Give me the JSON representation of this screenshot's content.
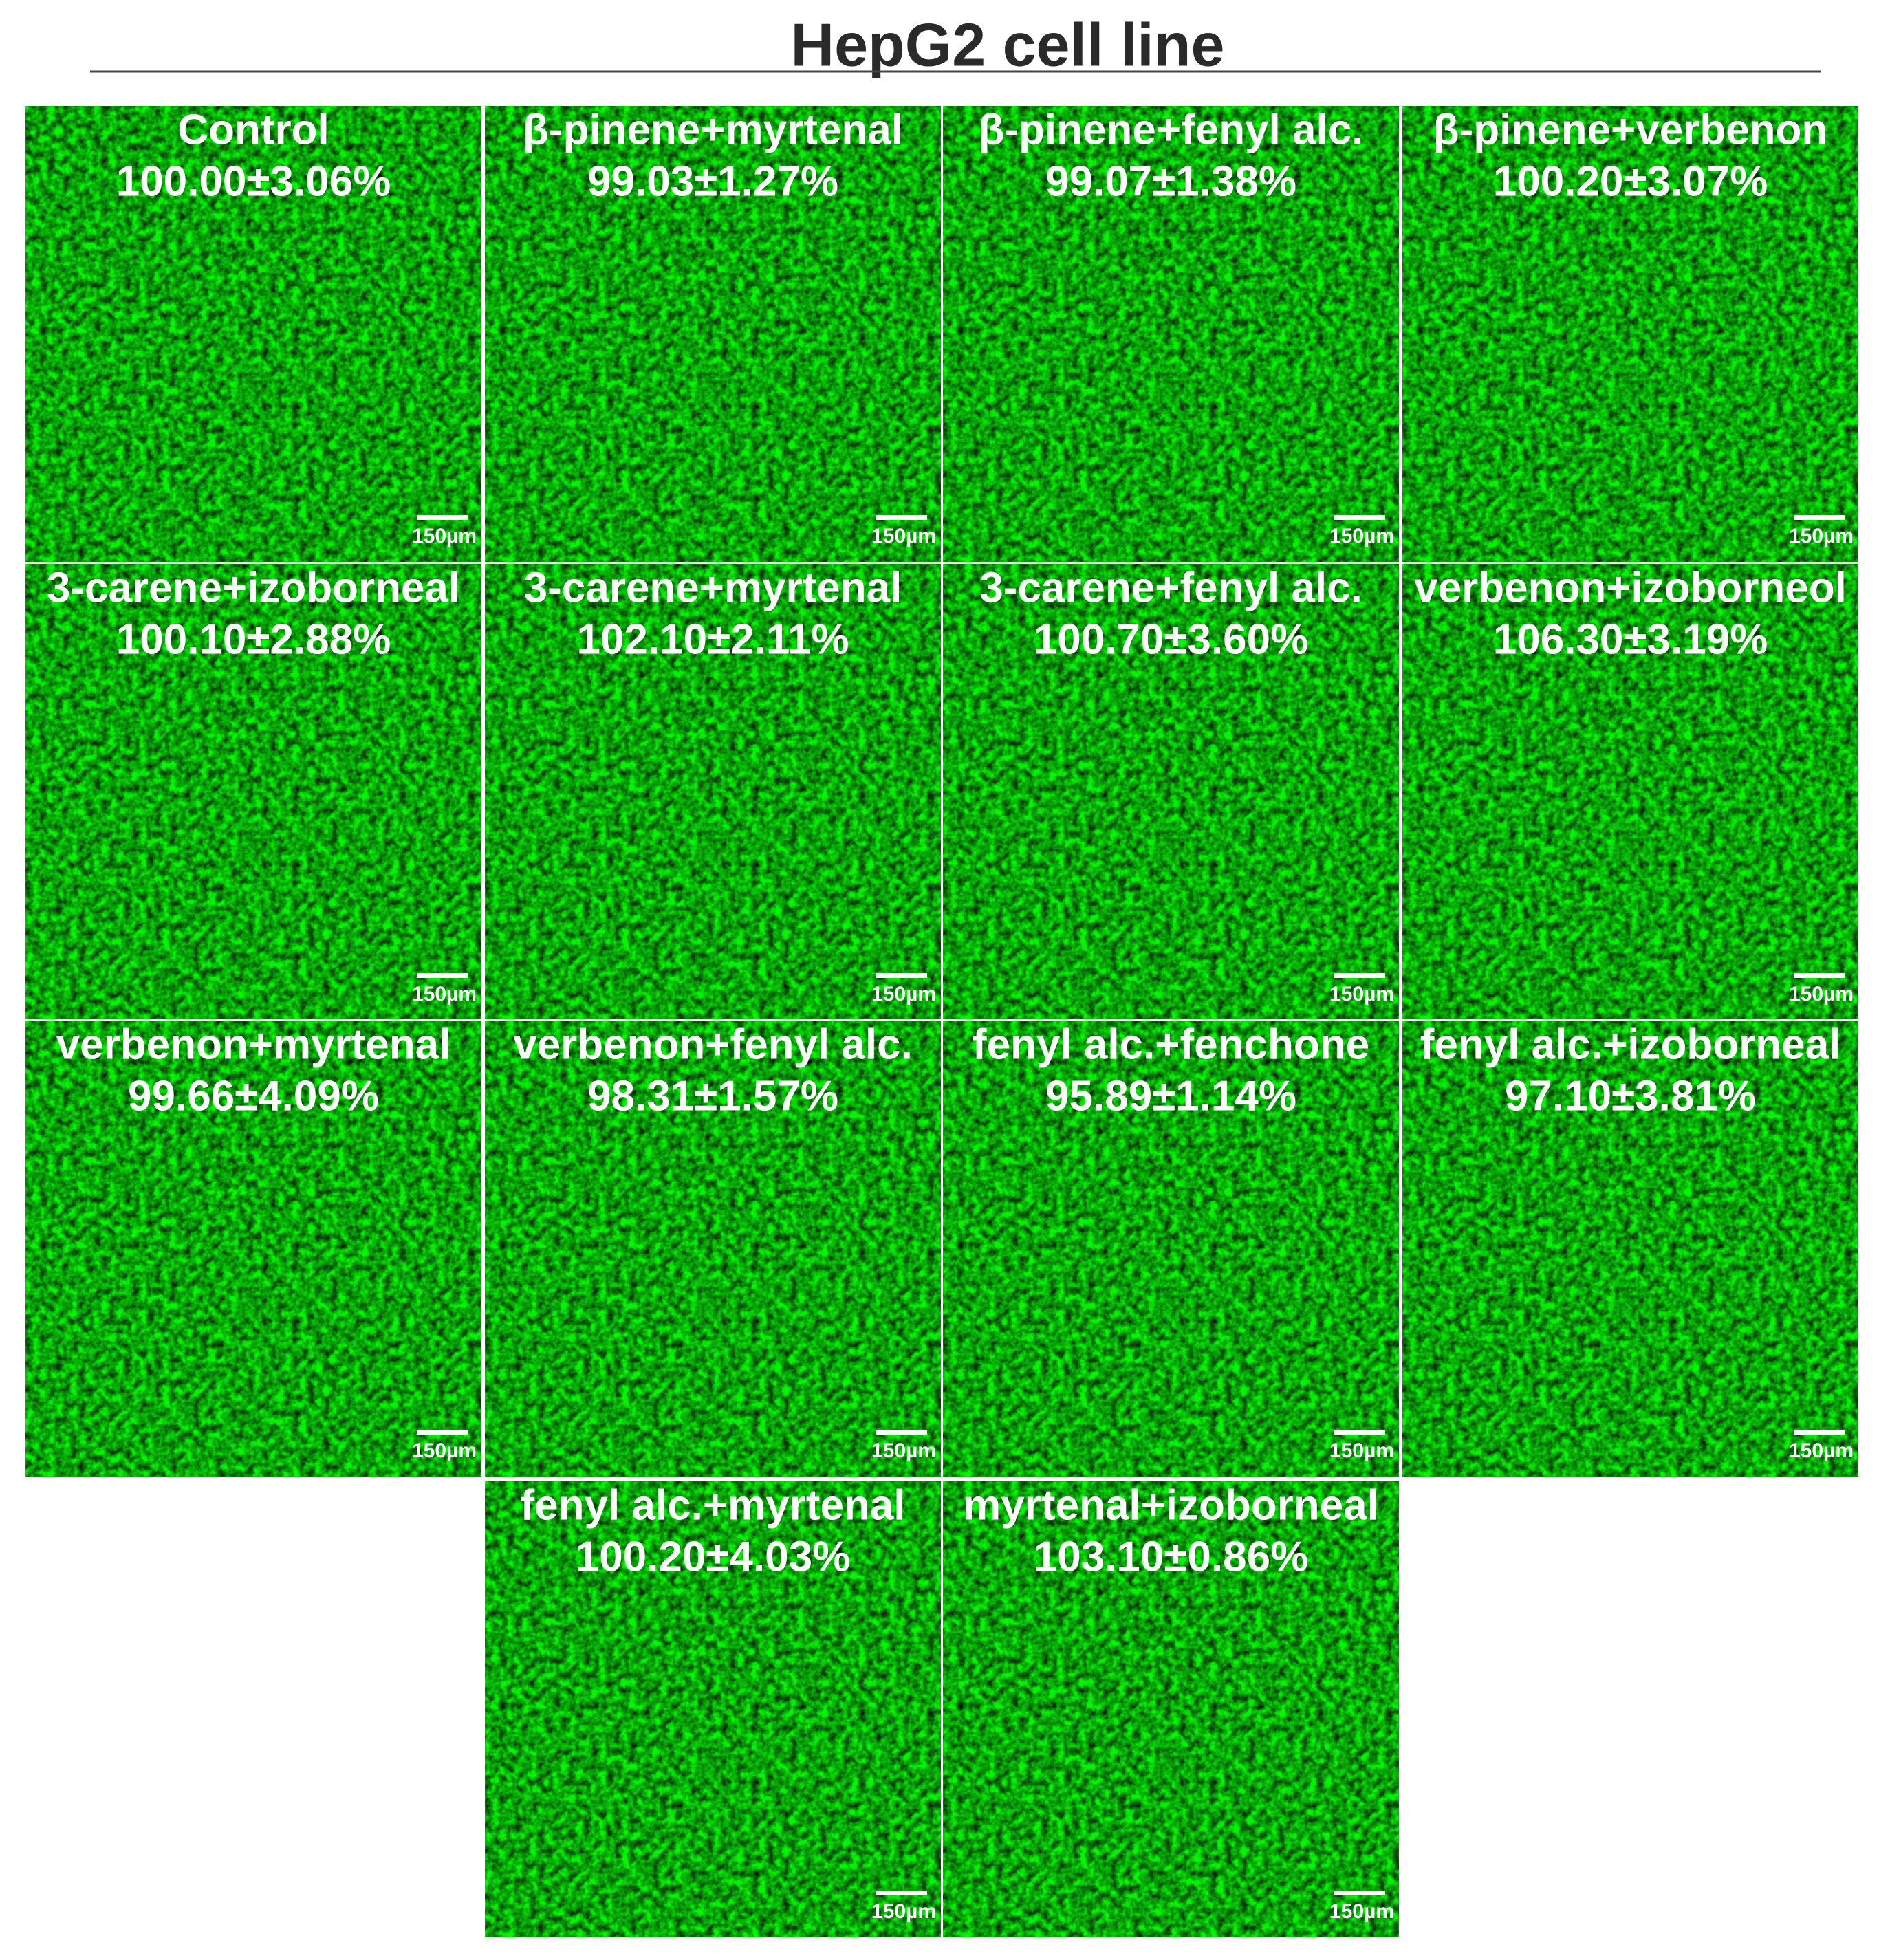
{
  "title": "HepG2 cell line",
  "scale_bar": "150µm",
  "panels": [
    {
      "label": "Control",
      "value": "100.00±3.06%"
    },
    {
      "label": "β-pinene+myrtenal",
      "value": "99.03±1.27%"
    },
    {
      "label": "β-pinene+fenyl alc.",
      "value": "99.07±1.38%"
    },
    {
      "label": "β-pinene+verbenon",
      "value": "100.20±3.07%"
    },
    {
      "label": "3-carene+izoborneal",
      "value": "100.10±2.88%"
    },
    {
      "label": "3-carene+myrtenal",
      "value": "102.10±2.11%"
    },
    {
      "label": "3-carene+fenyl alc.",
      "value": "100.70±3.60%"
    },
    {
      "label": "verbenon+izoborneol",
      "value": "106.30±3.19%"
    },
    {
      "label": "verbenon+myrtenal",
      "value": "99.66±4.09%"
    },
    {
      "label": "verbenon+fenyl alc.",
      "value": "98.31±1.57%"
    },
    {
      "label": "fenyl alc.+fenchone",
      "value": "95.89±1.14%"
    },
    {
      "label": "fenyl alc.+izoborneal",
      "value": "97.10±3.81%"
    },
    {
      "label": "fenyl alc.+myrtenal",
      "value": "100.20±4.03%"
    },
    {
      "label": "myrtenal+izoborneal",
      "value": "103.10±0.86%"
    }
  ]
}
